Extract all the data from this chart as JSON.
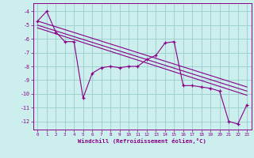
{
  "xlabel": "Windchill (Refroidissement éolien,°C)",
  "bg_color": "#cceeed",
  "line_color": "#880088",
  "grid_color": "#99cccc",
  "xlim": [
    -0.5,
    23.5
  ],
  "ylim": [
    -12.6,
    -3.4
  ],
  "yticks": [
    -12,
    -11,
    -10,
    -9,
    -8,
    -7,
    -6,
    -5,
    -4
  ],
  "xticks": [
    0,
    1,
    2,
    3,
    4,
    5,
    6,
    7,
    8,
    9,
    10,
    11,
    12,
    13,
    14,
    15,
    16,
    17,
    18,
    19,
    20,
    21,
    22,
    23
  ],
  "series1_x": [
    0,
    1,
    2,
    3,
    4,
    5,
    6,
    7,
    8,
    9,
    10,
    11,
    12,
    13,
    14,
    15,
    16,
    17,
    18,
    19,
    20,
    21,
    22,
    23
  ],
  "series1_y": [
    -4.7,
    -4.0,
    -5.5,
    -6.2,
    -6.2,
    -10.3,
    -8.5,
    -8.1,
    -8.0,
    -8.1,
    -8.0,
    -8.0,
    -7.5,
    -7.2,
    -6.3,
    -6.2,
    -9.4,
    -9.4,
    -9.5,
    -9.6,
    -9.8,
    -12.0,
    -12.2,
    -10.8
  ],
  "trend1_x": [
    0,
    23
  ],
  "trend1_y": [
    -4.7,
    -9.5
  ],
  "trend2_x": [
    0,
    23
  ],
  "trend2_y": [
    -5.0,
    -9.8
  ],
  "trend3_x": [
    0,
    23
  ],
  "trend3_y": [
    -5.2,
    -10.1
  ]
}
